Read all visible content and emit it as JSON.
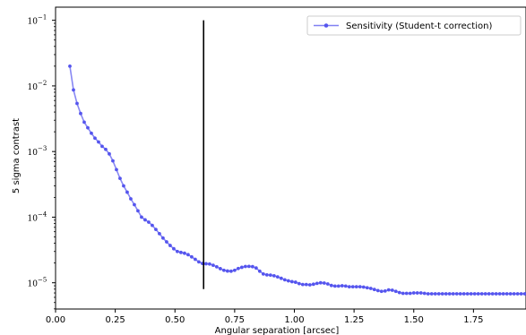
{
  "chart_data": {
    "type": "line",
    "xlabel": "Angular separation [arcsec]",
    "ylabel": "5 sigma contrast",
    "xlim": [
      0.0,
      1.97
    ],
    "ylim_log10": [
      -5.4,
      -0.8
    ],
    "yscale": "log",
    "grid": false,
    "legend_position": "top-right",
    "xticks": [
      0.0,
      0.25,
      0.5,
      0.75,
      1.0,
      1.25,
      1.5,
      1.75
    ],
    "xtick_labels": [
      "0.00",
      "0.25",
      "0.50",
      "0.75",
      "1.00",
      "1.25",
      "1.50",
      "1.75"
    ],
    "yticks_log10": [
      -5,
      -4,
      -3,
      -2,
      -1
    ],
    "ytick_labels": [
      "10",
      "10",
      "10",
      "10",
      "10"
    ],
    "ytick_exponents": [
      "−5",
      "−4",
      "−3",
      "−2",
      "−1"
    ],
    "series": [
      {
        "name": "Sensitivity (Student-t correction)",
        "color": "#5555ee",
        "x": [
          0.06,
          0.075,
          0.09,
          0.105,
          0.12,
          0.135,
          0.15,
          0.165,
          0.18,
          0.195,
          0.21,
          0.225,
          0.24,
          0.255,
          0.27,
          0.285,
          0.3,
          0.315,
          0.33,
          0.345,
          0.36,
          0.375,
          0.39,
          0.405,
          0.42,
          0.435,
          0.45,
          0.465,
          0.48,
          0.495,
          0.51,
          0.525,
          0.54,
          0.555,
          0.57,
          0.585,
          0.6,
          0.615,
          0.63,
          0.645,
          0.66,
          0.675,
          0.69,
          0.705,
          0.72,
          0.735,
          0.75,
          0.765,
          0.78,
          0.795,
          0.81,
          0.825,
          0.84,
          0.855,
          0.87,
          0.885,
          0.9,
          0.915,
          0.93,
          0.945,
          0.96,
          0.975,
          0.99,
          1.005,
          1.02,
          1.035,
          1.05,
          1.065,
          1.08,
          1.095,
          1.11,
          1.125,
          1.14,
          1.155,
          1.17,
          1.185,
          1.2,
          1.215,
          1.23,
          1.245,
          1.26,
          1.275,
          1.29,
          1.305,
          1.32,
          1.335,
          1.35,
          1.365,
          1.38,
          1.395,
          1.41,
          1.425,
          1.44,
          1.455,
          1.47,
          1.485,
          1.5,
          1.515,
          1.53,
          1.545,
          1.56,
          1.575,
          1.59,
          1.605,
          1.62,
          1.635,
          1.65,
          1.665,
          1.68,
          1.695,
          1.71,
          1.725,
          1.74,
          1.755,
          1.77,
          1.785,
          1.8,
          1.815,
          1.83,
          1.845,
          1.86,
          1.875,
          1.89,
          1.905,
          1.92,
          1.935,
          1.95,
          1.965
        ],
        "y": [
          0.02,
          0.0087,
          0.0054,
          0.0038,
          0.0028,
          0.0023,
          0.0019,
          0.0016,
          0.0014,
          0.0012,
          0.00108,
          0.00092,
          0.00072,
          0.00053,
          0.00039,
          0.0003,
          0.00024,
          0.00019,
          0.000155,
          0.000125,
          0.0001,
          9.1e-05,
          8.4e-05,
          7.5e-05,
          6.5e-05,
          5.6e-05,
          4.8e-05,
          4.2e-05,
          3.7e-05,
          3.3e-05,
          3e-05,
          2.9e-05,
          2.82e-05,
          2.68e-05,
          2.48e-05,
          2.28e-05,
          2.08e-05,
          1.97e-05,
          1.95e-05,
          1.93e-05,
          1.85e-05,
          1.75e-05,
          1.64e-05,
          1.55e-05,
          1.51e-05,
          1.5e-05,
          1.55e-05,
          1.65e-05,
          1.72e-05,
          1.77e-05,
          1.78e-05,
          1.76e-05,
          1.68e-05,
          1.5e-05,
          1.36e-05,
          1.32e-05,
          1.31e-05,
          1.28e-05,
          1.23e-05,
          1.17e-05,
          1.11e-05,
          1.07e-05,
          1.04e-05,
          1.02e-05,
          9.7e-06,
          9.4e-06,
          9.4e-06,
          9.3e-06,
          9.5e-06,
          9.8e-06,
          1e-05,
          9.9e-06,
          9.6e-06,
          9.1e-06,
          8.9e-06,
          8.9e-06,
          9e-06,
          8.9e-06,
          8.7e-06,
          8.7e-06,
          8.7e-06,
          8.7e-06,
          8.6e-06,
          8.4e-06,
          8.2e-06,
          7.9e-06,
          7.6e-06,
          7.4e-06,
          7.5e-06,
          7.8e-06,
          7.7e-06,
          7.4e-06,
          7.1e-06,
          6.9e-06,
          6.9e-06,
          6.9e-06,
          7e-06,
          7e-06,
          7e-06,
          6.9e-06,
          6.8e-06,
          6.8e-06,
          6.8e-06,
          6.8e-06,
          6.8e-06,
          6.8e-06,
          6.8e-06,
          6.8e-06,
          6.8e-06,
          6.8e-06,
          6.8e-06,
          6.8e-06,
          6.8e-06,
          6.8e-06,
          6.8e-06,
          6.8e-06,
          6.8e-06,
          6.8e-06,
          6.8e-06,
          6.8e-06,
          6.8e-06,
          6.8e-06,
          6.8e-06,
          6.8e-06,
          6.8e-06,
          6.8e-06,
          6.8e-06,
          6.8e-06
        ]
      }
    ],
    "vline": {
      "x": 0.62,
      "ymin": 8e-06,
      "ymax": 0.1,
      "color": "#000000"
    }
  }
}
